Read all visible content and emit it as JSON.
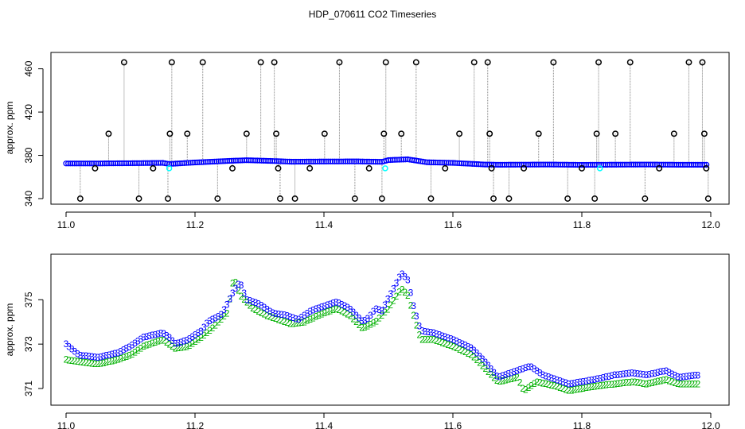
{
  "title": "HDP_070611  CO2 Timeseries",
  "colors": {
    "primary_points": "#0000ff",
    "secondary_points": "#00b000",
    "flagged_points": "#000000",
    "fill_points": "#00ffff",
    "connector_lines": "#808080"
  },
  "chart_data": [
    {
      "type": "scatter",
      "ylabel": "approx. ppm",
      "xlim": [
        11.0,
        12.0
      ],
      "ylim": [
        340,
        470
      ],
      "x_ticks": [
        "11.0",
        "11.2",
        "11.4",
        "11.6",
        "11.8",
        "12.0"
      ],
      "x_tick_values": [
        11.0,
        11.2,
        11.4,
        11.6,
        11.8,
        12.0
      ],
      "y_ticks": [
        "340",
        "380",
        "420",
        "460"
      ],
      "y_tick_values": [
        340,
        380,
        420,
        460
      ],
      "baseline": [
        [
          11.0,
          372.5
        ],
        [
          11.05,
          372.5
        ],
        [
          11.1,
          372.7
        ],
        [
          11.15,
          373.0
        ],
        [
          11.16,
          372.0
        ],
        [
          11.2,
          373.4
        ],
        [
          11.25,
          374.8
        ],
        [
          11.28,
          375.5
        ],
        [
          11.33,
          374.6
        ],
        [
          11.35,
          374.1
        ],
        [
          11.4,
          374.3
        ],
        [
          11.45,
          374.4
        ],
        [
          11.49,
          374.0
        ],
        [
          11.5,
          375.6
        ],
        [
          11.53,
          376.3
        ],
        [
          11.56,
          373.6
        ],
        [
          11.6,
          373.0
        ],
        [
          11.65,
          371.5
        ],
        [
          11.67,
          371.3
        ],
        [
          11.75,
          371.5
        ],
        [
          11.8,
          371.2
        ],
        [
          11.83,
          371.3
        ],
        [
          11.9,
          371.5
        ],
        [
          11.95,
          371.3
        ],
        [
          11.99,
          371.3
        ]
      ],
      "flagged_points": [
        {
          "x": 11.022,
          "y": 340
        },
        {
          "x": 11.045,
          "y": 368
        },
        {
          "x": 11.066,
          "y": 400
        },
        {
          "x": 11.09,
          "y": 466
        },
        {
          "x": 11.113,
          "y": 340
        },
        {
          "x": 11.135,
          "y": 368
        },
        {
          "x": 11.158,
          "y": 340
        },
        {
          "x": 11.161,
          "y": 400
        },
        {
          "x": 11.164,
          "y": 466
        },
        {
          "x": 11.188,
          "y": 400
        },
        {
          "x": 11.212,
          "y": 466
        },
        {
          "x": 11.235,
          "y": 340
        },
        {
          "x": 11.258,
          "y": 368
        },
        {
          "x": 11.28,
          "y": 400
        },
        {
          "x": 11.302,
          "y": 466
        },
        {
          "x": 11.323,
          "y": 466
        },
        {
          "x": 11.326,
          "y": 400
        },
        {
          "x": 11.329,
          "y": 368
        },
        {
          "x": 11.332,
          "y": 340
        },
        {
          "x": 11.355,
          "y": 340
        },
        {
          "x": 11.378,
          "y": 368
        },
        {
          "x": 11.401,
          "y": 400
        },
        {
          "x": 11.424,
          "y": 466
        },
        {
          "x": 11.448,
          "y": 340
        },
        {
          "x": 11.47,
          "y": 368
        },
        {
          "x": 11.49,
          "y": 340
        },
        {
          "x": 11.493,
          "y": 400
        },
        {
          "x": 11.496,
          "y": 466
        },
        {
          "x": 11.52,
          "y": 400
        },
        {
          "x": 11.543,
          "y": 466
        },
        {
          "x": 11.566,
          "y": 340
        },
        {
          "x": 11.588,
          "y": 368
        },
        {
          "x": 11.61,
          "y": 400
        },
        {
          "x": 11.633,
          "y": 466
        },
        {
          "x": 11.654,
          "y": 466
        },
        {
          "x": 11.657,
          "y": 400
        },
        {
          "x": 11.66,
          "y": 368
        },
        {
          "x": 11.663,
          "y": 340
        },
        {
          "x": 11.687,
          "y": 340
        },
        {
          "x": 11.71,
          "y": 368
        },
        {
          "x": 11.733,
          "y": 400
        },
        {
          "x": 11.756,
          "y": 466
        },
        {
          "x": 11.778,
          "y": 340
        },
        {
          "x": 11.8,
          "y": 368
        },
        {
          "x": 11.82,
          "y": 340
        },
        {
          "x": 11.823,
          "y": 400
        },
        {
          "x": 11.826,
          "y": 466
        },
        {
          "x": 11.852,
          "y": 400
        },
        {
          "x": 11.875,
          "y": 466
        },
        {
          "x": 11.898,
          "y": 340
        },
        {
          "x": 11.92,
          "y": 368
        },
        {
          "x": 11.943,
          "y": 400
        },
        {
          "x": 11.966,
          "y": 466
        },
        {
          "x": 11.987,
          "y": 466
        },
        {
          "x": 11.99,
          "y": 400
        },
        {
          "x": 11.993,
          "y": 368
        },
        {
          "x": 11.996,
          "y": 340
        }
      ],
      "fill_points": [
        {
          "x": 11.16,
          "y": 368
        },
        {
          "x": 11.495,
          "y": 368
        },
        {
          "x": 11.828,
          "y": 368
        }
      ]
    },
    {
      "type": "scatter",
      "ylabel": "approx. ppm",
      "xlim": [
        11.0,
        12.0
      ],
      "ylim": [
        370.5,
        376.8
      ],
      "x_ticks": [
        "11.0",
        "11.2",
        "11.4",
        "11.6",
        "11.8",
        "12.0"
      ],
      "x_tick_values": [
        11.0,
        11.2,
        11.4,
        11.6,
        11.8,
        12.0
      ],
      "y_ticks": [
        "371",
        "373",
        "375"
      ],
      "y_tick_values": [
        371,
        373,
        375
      ],
      "series": [
        {
          "name": "3",
          "symbol": "3",
          "color": "#0000ff",
          "points": [
            [
              11.0,
              373.0
            ],
            [
              11.02,
              372.5
            ],
            [
              11.05,
              372.4
            ],
            [
              11.08,
              372.6
            ],
            [
              11.1,
              372.9
            ],
            [
              11.12,
              373.3
            ],
            [
              11.15,
              373.5
            ],
            [
              11.16,
              373.3
            ],
            [
              11.17,
              373.0
            ],
            [
              11.19,
              373.2
            ],
            [
              11.21,
              373.6
            ],
            [
              11.22,
              374.0
            ],
            [
              11.24,
              374.3
            ],
            [
              11.25,
              374.8
            ],
            [
              11.26,
              375.4
            ],
            [
              11.27,
              375.8
            ],
            [
              11.28,
              375.0
            ],
            [
              11.3,
              374.8
            ],
            [
              11.32,
              374.4
            ],
            [
              11.34,
              374.3
            ],
            [
              11.36,
              374.1
            ],
            [
              11.38,
              374.5
            ],
            [
              11.4,
              374.7
            ],
            [
              11.42,
              374.9
            ],
            [
              11.44,
              374.6
            ],
            [
              11.46,
              374.0
            ],
            [
              11.47,
              374.2
            ],
            [
              11.48,
              374.6
            ],
            [
              11.49,
              374.5
            ],
            [
              11.5,
              375.1
            ],
            [
              11.51,
              375.6
            ],
            [
              11.52,
              376.2
            ],
            [
              11.53,
              375.9
            ],
            [
              11.54,
              374.6
            ],
            [
              11.55,
              373.6
            ],
            [
              11.57,
              373.5
            ],
            [
              11.6,
              373.2
            ],
            [
              11.63,
              372.8
            ],
            [
              11.65,
              372.2
            ],
            [
              11.67,
              371.5
            ],
            [
              11.7,
              371.8
            ],
            [
              11.72,
              372.0
            ],
            [
              11.74,
              371.6
            ],
            [
              11.76,
              371.4
            ],
            [
              11.78,
              371.2
            ],
            [
              11.8,
              371.3
            ],
            [
              11.82,
              371.4
            ],
            [
              11.85,
              371.6
            ],
            [
              11.88,
              371.7
            ],
            [
              11.9,
              371.6
            ],
            [
              11.93,
              371.8
            ],
            [
              11.95,
              371.5
            ],
            [
              11.98,
              371.6
            ]
          ]
        },
        {
          "name": "2",
          "symbol": "2",
          "color": "#00b000",
          "points": [
            [
              11.0,
              372.3
            ],
            [
              11.02,
              372.2
            ],
            [
              11.05,
              372.1
            ],
            [
              11.08,
              372.3
            ],
            [
              11.1,
              372.5
            ],
            [
              11.12,
              372.9
            ],
            [
              11.15,
              373.2
            ],
            [
              11.17,
              372.8
            ],
            [
              11.19,
              372.9
            ],
            [
              11.21,
              373.3
            ],
            [
              11.23,
              373.8
            ],
            [
              11.25,
              374.4
            ],
            [
              11.26,
              376.0
            ],
            [
              11.27,
              375.2
            ],
            [
              11.29,
              374.6
            ],
            [
              11.31,
              374.3
            ],
            [
              11.33,
              374.1
            ],
            [
              11.35,
              373.9
            ],
            [
              11.37,
              374.0
            ],
            [
              11.4,
              374.4
            ],
            [
              11.42,
              374.6
            ],
            [
              11.44,
              374.3
            ],
            [
              11.46,
              373.7
            ],
            [
              11.48,
              374.0
            ],
            [
              11.5,
              374.6
            ],
            [
              11.52,
              375.5
            ],
            [
              11.53,
              375.2
            ],
            [
              11.55,
              373.2
            ],
            [
              11.57,
              373.2
            ],
            [
              11.6,
              372.9
            ],
            [
              11.63,
              372.5
            ],
            [
              11.65,
              371.9
            ],
            [
              11.67,
              371.3
            ],
            [
              11.7,
              371.5
            ],
            [
              11.71,
              370.9
            ],
            [
              11.73,
              371.3
            ],
            [
              11.76,
              371.1
            ],
            [
              11.78,
              370.9
            ],
            [
              11.8,
              371.0
            ],
            [
              11.82,
              371.1
            ],
            [
              11.85,
              371.2
            ],
            [
              11.88,
              371.3
            ],
            [
              11.9,
              371.2
            ],
            [
              11.93,
              371.4
            ],
            [
              11.95,
              371.2
            ],
            [
              11.98,
              371.2
            ]
          ]
        }
      ]
    }
  ]
}
